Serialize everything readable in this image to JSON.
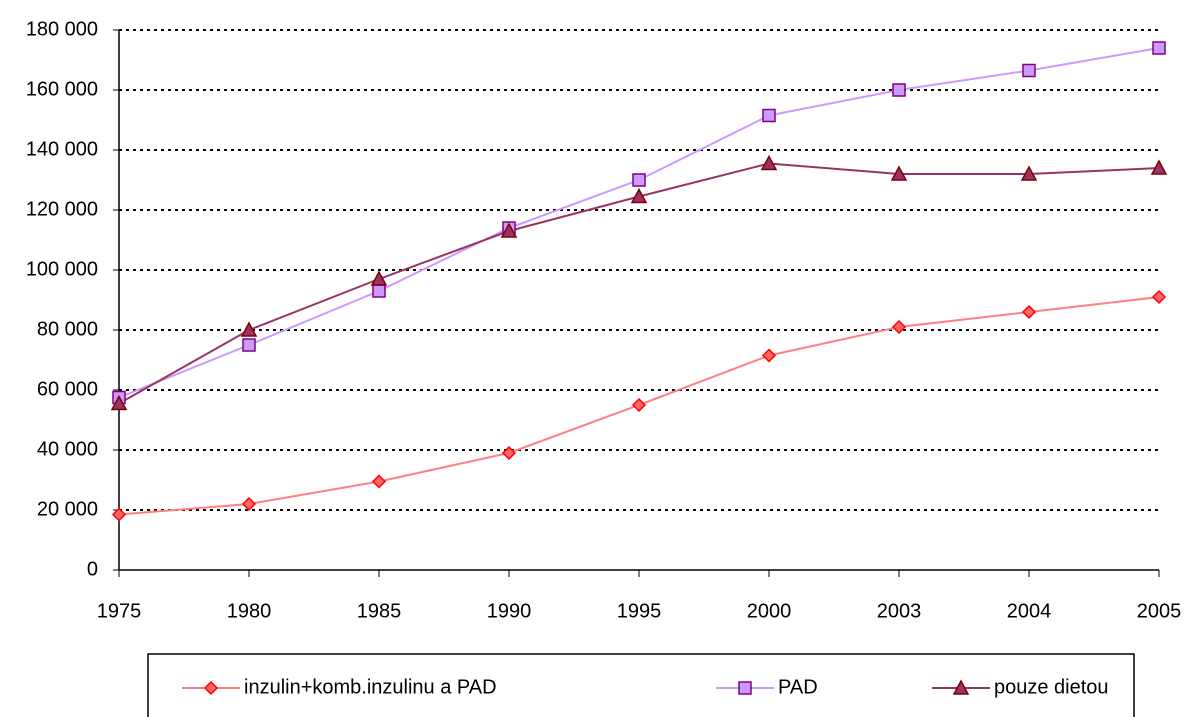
{
  "chart_data": {
    "type": "line",
    "categories": [
      "1975",
      "1980",
      "1985",
      "1990",
      "1995",
      "2000",
      "2003",
      "2004",
      "2005"
    ],
    "series": [
      {
        "name": "inzulin+komb.inzulinu a PAD",
        "color": "#ff8080",
        "marker": "diamond",
        "marker_fill": "#ff6666",
        "marker_edge": "#ff0000",
        "values": [
          18500,
          22000,
          29500,
          39000,
          55000,
          71500,
          81000,
          86000,
          91000
        ]
      },
      {
        "name": "PAD",
        "color": "#cc99ff",
        "marker": "square",
        "marker_fill": "#cc99ff",
        "marker_edge": "#800080",
        "values": [
          57500,
          75000,
          93000,
          114000,
          130000,
          151500,
          160000,
          166500,
          174000
        ]
      },
      {
        "name": "pouze dietou",
        "color": "#993366",
        "marker": "triangle",
        "marker_fill": "#993366",
        "marker_edge": "#800000",
        "values": [
          55500,
          80000,
          97000,
          113000,
          124500,
          135500,
          132000,
          132000,
          134000
        ]
      }
    ],
    "ylim": [
      0,
      180000
    ],
    "yticks": [
      0,
      {
        "value": 20000,
        "label": "20 000"
      },
      {
        "value": 40000,
        "label": "40 000"
      },
      {
        "value": 60000,
        "label": "60 000"
      },
      {
        "value": 80000,
        "label": "80 000"
      },
      {
        "value": 100000,
        "label": "100 000"
      },
      {
        "value": 120000,
        "label": "120 000"
      },
      {
        "value": 140000,
        "label": "140 000"
      },
      {
        "value": 160000,
        "label": "160 000"
      },
      {
        "value": 180000,
        "label": "180 000"
      }
    ],
    "grid": true,
    "legend": "bottom"
  }
}
